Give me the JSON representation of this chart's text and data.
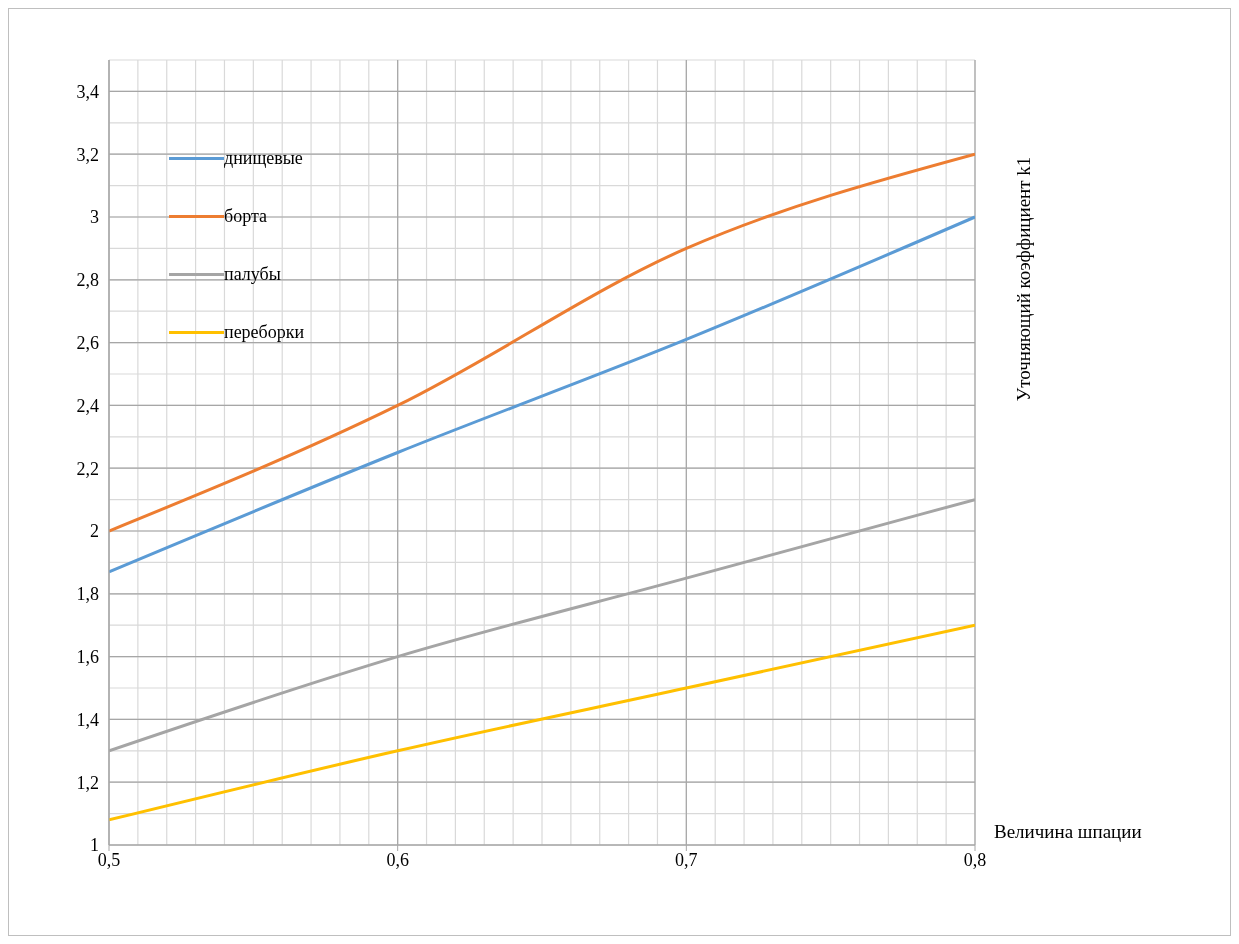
{
  "chart_data": {
    "type": "line",
    "xlabel": "Величина шпации",
    "ylabel": "Уточняющий коэффициент k1",
    "x": [
      0.5,
      0.6,
      0.7,
      0.8
    ],
    "series": [
      {
        "name": "днищевые",
        "color": "#5b9bd5",
        "values": [
          1.87,
          2.25,
          2.61,
          3.0
        ]
      },
      {
        "name": "борта",
        "color": "#ed7d31",
        "values": [
          2.0,
          2.4,
          2.9,
          3.2
        ]
      },
      {
        "name": "палубы",
        "color": "#a5a5a5",
        "values": [
          1.3,
          1.6,
          1.85,
          2.1
        ]
      },
      {
        "name": "переборки",
        "color": "#ffc000",
        "values": [
          1.08,
          1.3,
          1.5,
          1.7
        ]
      }
    ],
    "xlim": [
      0.5,
      0.8
    ],
    "xticks": [
      {
        "value": 0.5,
        "label": "0,5"
      },
      {
        "value": 0.6,
        "label": "0,6"
      },
      {
        "value": 0.7,
        "label": "0,7"
      },
      {
        "value": 0.8,
        "label": "0,8"
      }
    ],
    "ylim": [
      1,
      3.5
    ],
    "yticks": [
      1,
      {
        "value": 1.2,
        "label": "1,2"
      },
      {
        "value": 1.4,
        "label": "1,4"
      },
      {
        "value": 1.6,
        "label": "1,6"
      },
      {
        "value": 1.8,
        "label": "1,8"
      },
      2,
      {
        "value": 2.2,
        "label": "2,2"
      },
      {
        "value": 2.4,
        "label": "2,4"
      },
      {
        "value": 2.6,
        "label": "2,6"
      },
      {
        "value": 2.8,
        "label": "2,8"
      },
      3,
      {
        "value": 3.2,
        "label": "3,2"
      },
      {
        "value": 3.4,
        "label": "3,4"
      }
    ],
    "grid": true,
    "legend": "top left",
    "marker": "none",
    "line_style": "solid"
  }
}
